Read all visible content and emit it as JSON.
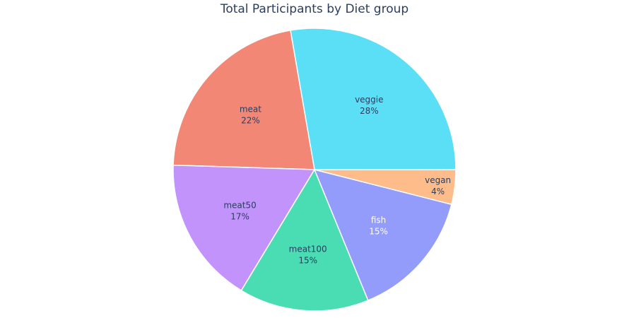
{
  "chart_data": {
    "type": "pie",
    "title": "Total Participants by Diet group",
    "slices": [
      {
        "label": "veggie",
        "value": 28,
        "percent_text": "28%",
        "color": "#5bdff6",
        "text_color": "#2a3f5f"
      },
      {
        "label": "meat",
        "value": 22,
        "percent_text": "22%",
        "color": "#f28775",
        "text_color": "#2a3f5f"
      },
      {
        "label": "meat50",
        "value": 17,
        "percent_text": "17%",
        "color": "#c393fc",
        "text_color": "#2a3f5f"
      },
      {
        "label": "meat100",
        "value": 15,
        "percent_text": "15%",
        "color": "#4adcb3",
        "text_color": "#2a3f5f"
      },
      {
        "label": "fish",
        "value": 15,
        "percent_text": "15%",
        "color": "#939bfb",
        "text_color": "#ffffff"
      },
      {
        "label": "vegan",
        "value": 4,
        "percent_text": "4%",
        "color": "#ffbc8b",
        "text_color": "#2a3f5f"
      }
    ],
    "direction": "counterclockwise",
    "legend": "none"
  }
}
